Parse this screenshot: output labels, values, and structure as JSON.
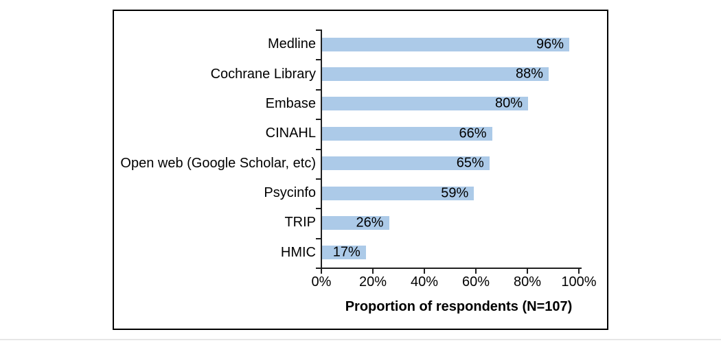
{
  "page": {
    "background": "#ffffff",
    "frame_border_color": "#000000",
    "bottom_rule_color": "#e6e6e6"
  },
  "chart_data": {
    "type": "bar",
    "orientation": "horizontal",
    "categories": [
      "Medline",
      "Cochrane Library",
      "Embase",
      "CINAHL",
      "Open web (Google Scholar, etc)",
      "Psycinfo",
      "TRIP",
      "HMIC"
    ],
    "values": [
      96,
      88,
      80,
      66,
      65,
      59,
      26,
      17
    ],
    "value_labels": [
      "96%",
      "88%",
      "80%",
      "66%",
      "65%",
      "59%",
      "26%",
      "17%"
    ],
    "xlabel": "Proportion of respondents (N=107)",
    "x_ticks": [
      "0%",
      "20%",
      "40%",
      "60%",
      "80%",
      "100%"
    ],
    "xlim": [
      0,
      100
    ],
    "grid": false,
    "legend": false,
    "data_label_position": "inside-end",
    "bar_color": "#ACCAE8",
    "axis_color": "#1f1f1f",
    "text_color": "#000000"
  }
}
